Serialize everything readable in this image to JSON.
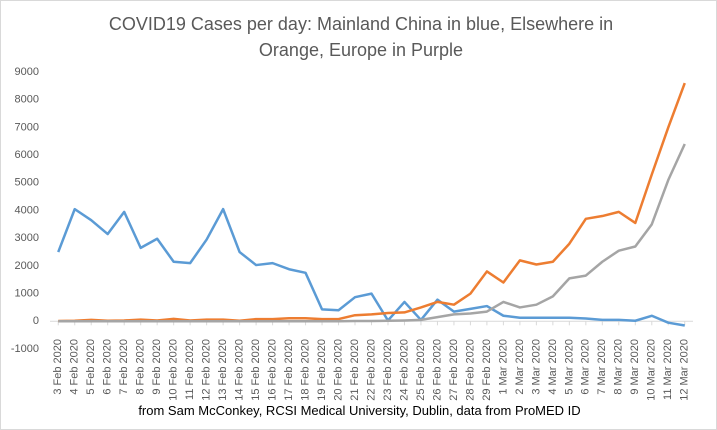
{
  "chart_data": {
    "type": "line",
    "title": "COVID19 Cases per day: Mainland China in blue, Elsewhere in Orange, Europe in Purple",
    "caption": "from Sam McConkey, RCSI Medical University, Dublin, data from ProMED ID",
    "categories": [
      "3 Feb 2020",
      "4 Feb 2020",
      "5 Feb 2020",
      "6 Feb 2020",
      "7 Feb 2020",
      "8 Feb 2020",
      "9 Feb 2020",
      "10 Feb 2020",
      "11 Feb 2020",
      "12 Feb 2020",
      "13 Feb 2020",
      "14 Feb 2020",
      "15 Feb 2020",
      "16 Feb 2020",
      "17 Feb 2020",
      "18 Feb 2020",
      "19 Feb 2020",
      "20 Feb 2020",
      "21 Feb 2020",
      "22 Feb 2020",
      "23 Feb 2020",
      "24 Feb 2020",
      "25 Feb 2020",
      "26 Feb 2020",
      "27 Feb 2020",
      "28 Feb 2020",
      "29 Feb 2020",
      "1 Mar 2020",
      "2 Mar 2020",
      "3 Mar 2020",
      "4 Mar 2020",
      "5 Mar 2020",
      "6 Mar 2020",
      "7 Mar 2020",
      "8 Mar 2020",
      "9 Mar 2020",
      "10 Mar 2020",
      "11 Mar 2020",
      "12 Mar 2020"
    ],
    "series": [
      {
        "color": "#5b9bd5",
        "values": [
          2500,
          4050,
          3650,
          3150,
          3950,
          2650,
          2980,
          2150,
          2100,
          2950,
          4050,
          2500,
          2030,
          2100,
          1880,
          1750,
          430,
          400,
          870,
          1000,
          30,
          700,
          50,
          780,
          350,
          450,
          550,
          200,
          130,
          130,
          130,
          130,
          100,
          50,
          50,
          20,
          200,
          -50,
          -150
        ]
      },
      {
        "color": "#ed7d31",
        "values": [
          10,
          20,
          50,
          20,
          30,
          60,
          30,
          90,
          30,
          60,
          60,
          20,
          80,
          80,
          110,
          110,
          80,
          80,
          220,
          250,
          300,
          320,
          500,
          700,
          600,
          1000,
          1800,
          1400,
          2200,
          2050,
          2150,
          2800,
          3700,
          3800,
          3950,
          3550,
          5300,
          7000,
          8600
        ]
      },
      {
        "color": "#a5a5a5",
        "values": [
          0,
          0,
          0,
          0,
          0,
          0,
          0,
          0,
          0,
          0,
          0,
          0,
          0,
          0,
          0,
          0,
          0,
          0,
          10,
          10,
          20,
          30,
          50,
          150,
          250,
          280,
          350,
          700,
          500,
          600,
          900,
          1550,
          1650,
          2150,
          2550,
          2700,
          3500,
          5100,
          6400
        ]
      }
    ],
    "ylim": [
      -1000,
      9000
    ],
    "yticks": [
      -1000,
      0,
      1000,
      2000,
      3000,
      4000,
      5000,
      6000,
      7000,
      8000,
      9000
    ],
    "grid": false
  }
}
